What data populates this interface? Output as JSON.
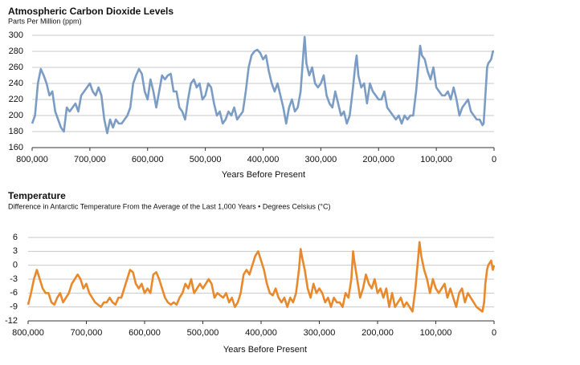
{
  "chart_data": [
    {
      "type": "line",
      "title": "Atmospheric Carbon Dioxide Levels",
      "subtitle": "Parts Per Million (ppm)",
      "x_label": "Years Before Present",
      "xlim": [
        800000,
        0
      ],
      "xticks": [
        {
          "value": 800000,
          "label": "800,000"
        },
        {
          "value": 700000,
          "label": "700,000"
        },
        {
          "value": 600000,
          "label": "600,000"
        },
        {
          "value": 500000,
          "label": "500,000"
        },
        {
          "value": 400000,
          "label": "400,000"
        },
        {
          "value": 300000,
          "label": "300,000"
        },
        {
          "value": 200000,
          "label": "200,000"
        },
        {
          "value": 100000,
          "label": "100,000"
        },
        0
      ],
      "ylim": [
        160,
        300
      ],
      "yticks": [
        160,
        180,
        200,
        220,
        240,
        260,
        280,
        300
      ],
      "grid": true,
      "x": [
        800000,
        795000,
        790000,
        785000,
        780000,
        775000,
        770000,
        765000,
        760000,
        755000,
        750000,
        745000,
        740000,
        735000,
        730000,
        725000,
        720000,
        715000,
        710000,
        705000,
        700000,
        695000,
        690000,
        685000,
        680000,
        675000,
        670000,
        665000,
        660000,
        655000,
        650000,
        645000,
        640000,
        635000,
        630000,
        625000,
        620000,
        615000,
        610000,
        605000,
        600000,
        595000,
        590000,
        585000,
        580000,
        575000,
        570000,
        565000,
        560000,
        555000,
        550000,
        545000,
        540000,
        535000,
        530000,
        525000,
        520000,
        515000,
        510000,
        505000,
        500000,
        495000,
        490000,
        485000,
        480000,
        475000,
        470000,
        465000,
        460000,
        455000,
        450000,
        445000,
        440000,
        435000,
        430000,
        425000,
        420000,
        415000,
        410000,
        405000,
        400000,
        395000,
        390000,
        385000,
        380000,
        375000,
        370000,
        365000,
        360000,
        355000,
        350000,
        345000,
        340000,
        335000,
        330000,
        328000,
        325000,
        320000,
        315000,
        310000,
        305000,
        300000,
        295000,
        290000,
        285000,
        280000,
        275000,
        270000,
        265000,
        260000,
        255000,
        250000,
        245000,
        240000,
        238000,
        235000,
        230000,
        225000,
        220000,
        215000,
        210000,
        205000,
        200000,
        195000,
        190000,
        185000,
        180000,
        175000,
        170000,
        165000,
        160000,
        155000,
        150000,
        145000,
        140000,
        135000,
        130000,
        128000,
        125000,
        120000,
        115000,
        110000,
        105000,
        100000,
        95000,
        90000,
        85000,
        80000,
        75000,
        70000,
        65000,
        60000,
        55000,
        50000,
        45000,
        40000,
        35000,
        30000,
        25000,
        20000,
        18000,
        15000,
        12000,
        10000,
        5000,
        2000,
        0
      ],
      "series": [
        {
          "name": "CO2",
          "color": "#7b9cc4",
          "values": [
            190,
            200,
            240,
            258,
            250,
            240,
            225,
            230,
            205,
            195,
            185,
            180,
            210,
            205,
            210,
            215,
            205,
            225,
            230,
            235,
            240,
            230,
            225,
            235,
            225,
            195,
            178,
            195,
            185,
            195,
            190,
            190,
            195,
            200,
            210,
            240,
            250,
            258,
            252,
            230,
            220,
            245,
            230,
            210,
            230,
            250,
            245,
            250,
            252,
            230,
            230,
            210,
            205,
            195,
            220,
            240,
            245,
            235,
            240,
            220,
            225,
            240,
            235,
            215,
            200,
            205,
            190,
            195,
            205,
            200,
            210,
            195,
            200,
            205,
            230,
            260,
            275,
            280,
            282,
            278,
            270,
            275,
            255,
            240,
            230,
            240,
            225,
            210,
            190,
            210,
            220,
            205,
            210,
            230,
            280,
            298,
            265,
            250,
            260,
            240,
            235,
            240,
            250,
            225,
            215,
            210,
            230,
            215,
            200,
            205,
            190,
            200,
            230,
            265,
            275,
            250,
            235,
            240,
            215,
            240,
            230,
            225,
            220,
            220,
            230,
            210,
            205,
            200,
            195,
            200,
            190,
            200,
            195,
            200,
            200,
            230,
            270,
            287,
            275,
            270,
            255,
            245,
            260,
            235,
            230,
            225,
            225,
            230,
            220,
            235,
            220,
            200,
            210,
            215,
            220,
            205,
            200,
            195,
            195,
            188,
            190,
            225,
            260,
            265,
            270,
            280,
            280
          ]
        }
      ]
    },
    {
      "type": "line",
      "title": "Temperature",
      "subtitle": "Difference in Antarctic Temperature From the Average of the Last 1,000 Years • Degrees Celsius (°C)",
      "x_label": "Years Before Present",
      "xlim": [
        800000,
        0
      ],
      "xticks": [
        {
          "value": 800000,
          "label": "800,000"
        },
        {
          "value": 700000,
          "label": "700,000"
        },
        {
          "value": 600000,
          "label": "600,000"
        },
        {
          "value": 500000,
          "label": "500,000"
        },
        {
          "value": 400000,
          "label": "400,000"
        },
        {
          "value": 300000,
          "label": "300,000"
        },
        {
          "value": 200000,
          "label": "200,000"
        },
        {
          "value": 100000,
          "label": "100,000"
        },
        0
      ],
      "ylim": [
        -12,
        6
      ],
      "yticks": [
        -12,
        -9,
        -6,
        -3,
        0,
        3,
        6
      ],
      "grid": true,
      "x": [
        800000,
        795000,
        790000,
        785000,
        780000,
        775000,
        770000,
        765000,
        760000,
        755000,
        750000,
        745000,
        740000,
        735000,
        730000,
        725000,
        720000,
        715000,
        710000,
        705000,
        700000,
        695000,
        690000,
        685000,
        680000,
        675000,
        670000,
        665000,
        660000,
        655000,
        650000,
        645000,
        640000,
        635000,
        630000,
        625000,
        620000,
        615000,
        610000,
        605000,
        600000,
        595000,
        590000,
        585000,
        580000,
        575000,
        570000,
        565000,
        560000,
        555000,
        550000,
        545000,
        540000,
        535000,
        530000,
        525000,
        520000,
        515000,
        510000,
        505000,
        500000,
        495000,
        490000,
        485000,
        480000,
        475000,
        470000,
        465000,
        460000,
        455000,
        450000,
        445000,
        440000,
        435000,
        430000,
        425000,
        420000,
        415000,
        410000,
        405000,
        400000,
        395000,
        390000,
        385000,
        380000,
        375000,
        370000,
        365000,
        360000,
        355000,
        350000,
        345000,
        340000,
        335000,
        332000,
        330000,
        325000,
        320000,
        315000,
        310000,
        305000,
        300000,
        295000,
        290000,
        285000,
        280000,
        275000,
        270000,
        265000,
        260000,
        255000,
        250000,
        245000,
        242000,
        240000,
        235000,
        230000,
        225000,
        220000,
        215000,
        210000,
        205000,
        200000,
        195000,
        190000,
        185000,
        180000,
        175000,
        170000,
        165000,
        160000,
        155000,
        150000,
        145000,
        140000,
        135000,
        130000,
        128000,
        125000,
        120000,
        115000,
        110000,
        105000,
        100000,
        95000,
        90000,
        85000,
        80000,
        75000,
        70000,
        65000,
        60000,
        55000,
        50000,
        45000,
        40000,
        35000,
        30000,
        25000,
        20000,
        17000,
        15000,
        12000,
        10000,
        5000,
        2000,
        0
      ],
      "series": [
        {
          "name": "Temperature",
          "color": "#e8892c",
          "values": [
            -8.5,
            -6,
            -3,
            -1,
            -3,
            -5,
            -6,
            -6,
            -8,
            -8.5,
            -7,
            -6,
            -8,
            -7,
            -6,
            -4,
            -3,
            -2,
            -3,
            -5,
            -4,
            -6,
            -7,
            -8,
            -8.5,
            -9,
            -8,
            -8,
            -7,
            -8,
            -8.5,
            -7,
            -7,
            -5,
            -3,
            -1,
            -1.5,
            -4,
            -5,
            -4,
            -6,
            -5,
            -6,
            -2,
            -1.5,
            -3,
            -5,
            -7,
            -8,
            -8.5,
            -8,
            -8.5,
            -7,
            -6,
            -4,
            -5,
            -3,
            -6,
            -5,
            -4,
            -5,
            -4,
            -3,
            -4,
            -7,
            -6,
            -6.5,
            -7,
            -6,
            -8,
            -7,
            -9,
            -8,
            -6,
            -2,
            -1,
            -2,
            0,
            2,
            3,
            1,
            -1,
            -4,
            -6,
            -6.5,
            -5,
            -7,
            -8,
            -7,
            -9,
            -7,
            -8,
            -6,
            -1,
            3.5,
            2,
            -1,
            -5,
            -7,
            -4,
            -6,
            -5,
            -6,
            -8,
            -7,
            -9,
            -7,
            -8,
            -8,
            -9,
            -6,
            -7,
            -3,
            3,
            1,
            -3,
            -7,
            -5,
            -2,
            -4,
            -5,
            -3,
            -6,
            -5,
            -7,
            -5,
            -9,
            -6,
            -9,
            -8,
            -7,
            -9,
            -8,
            -9,
            -10,
            -5,
            2,
            5,
            2,
            -1,
            -3,
            -6,
            -3,
            -5,
            -6,
            -5,
            -4,
            -7,
            -5,
            -7,
            -9,
            -6,
            -5,
            -8,
            -6,
            -7,
            -8,
            -9,
            -9.5,
            -10,
            -8,
            -4,
            -1,
            0,
            1,
            -1,
            0
          ]
        }
      ]
    }
  ]
}
